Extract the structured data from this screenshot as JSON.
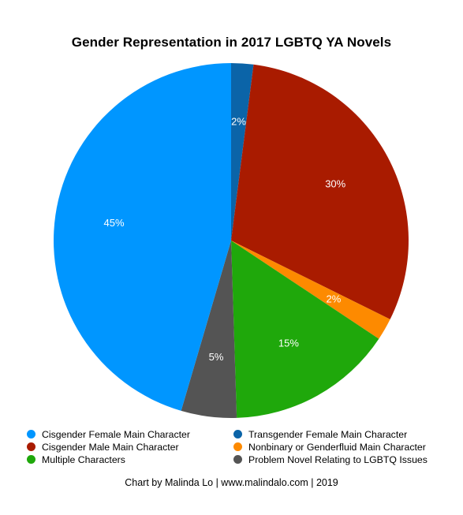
{
  "chart_data": {
    "type": "pie",
    "title": "Gender Representation in 2017 LGBTQ YA Novels",
    "slices": [
      {
        "name": "Transgender Female Main Character",
        "value": 2,
        "label": "2%",
        "color": "#0b64a8"
      },
      {
        "name": "Cisgender Male Main Character",
        "value": 30,
        "label": "30%",
        "color": "#a91b00"
      },
      {
        "name": "Nonbinary or Genderfluid Main Character",
        "value": 2,
        "label": "2%",
        "color": "#fd8a00"
      },
      {
        "name": "Multiple Characters",
        "value": 15,
        "label": "15%",
        "color": "#1fa80b"
      },
      {
        "name": "Problem Novel Relating to LGBTQ Issues",
        "value": 5,
        "label": "5%",
        "color": "#545454"
      },
      {
        "name": "Cisgender Female Main Character",
        "value": 45,
        "label": "45%",
        "color": "#0096ff"
      }
    ],
    "legend": [
      {
        "label": "Cisgender Female Main Character",
        "color": "#0096ff"
      },
      {
        "label": "Transgender Female Main Character",
        "color": "#0b64a8"
      },
      {
        "label": "Cisgender Male Main Character",
        "color": "#a91b00"
      },
      {
        "label": "Nonbinary or Genderfluid Main Character",
        "color": "#fd8a00"
      },
      {
        "label": "Multiple Characters",
        "color": "#1fa80b"
      },
      {
        "label": "Problem Novel Relating to LGBTQ Issues",
        "color": "#545454"
      }
    ],
    "legend_placement": "bottom",
    "footer": "Chart by Malinda Lo | www.malindalo.com | 2019"
  }
}
